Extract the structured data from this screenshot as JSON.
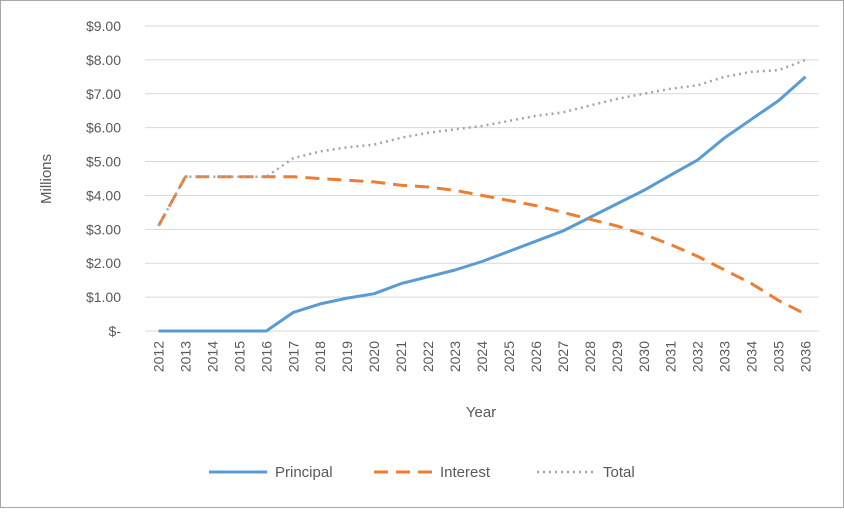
{
  "chart_data": {
    "type": "line",
    "title": "",
    "xlabel": "Year",
    "ylabel": "Millions",
    "ylim": [
      0,
      9
    ],
    "yticks": [
      0,
      1,
      2,
      3,
      4,
      5,
      6,
      7,
      8,
      9
    ],
    "ytick_labels": [
      "$-",
      "$1.00",
      "$2.00",
      "$3.00",
      "$4.00",
      "$5.00",
      "$6.00",
      "$7.00",
      "$8.00",
      "$9.00"
    ],
    "grid": true,
    "legend": "bottom",
    "categories": [
      "2012",
      "2013",
      "2014",
      "2015",
      "2016",
      "2017",
      "2018",
      "2019",
      "2020",
      "2021",
      "2022",
      "2023",
      "2024",
      "2025",
      "2026",
      "2027",
      "2028",
      "2029",
      "2030",
      "2031",
      "2032",
      "2033",
      "2034",
      "2035",
      "2036"
    ],
    "series": [
      {
        "name": "Principal",
        "color": "#5b9bd5",
        "style": "solid",
        "values": [
          0,
          0,
          0,
          0,
          0,
          0.55,
          0.8,
          0.97,
          1.1,
          1.4,
          1.6,
          1.8,
          2.05,
          2.35,
          2.65,
          2.95,
          3.35,
          3.75,
          4.15,
          4.6,
          5.05,
          5.7,
          6.25,
          6.8,
          7.5
        ]
      },
      {
        "name": "Interest",
        "color": "#ed7d31",
        "style": "dashed",
        "values": [
          3.1,
          4.55,
          4.55,
          4.55,
          4.55,
          4.55,
          4.5,
          4.45,
          4.4,
          4.3,
          4.25,
          4.15,
          4.0,
          3.85,
          3.7,
          3.5,
          3.3,
          3.1,
          2.85,
          2.55,
          2.2,
          1.8,
          1.4,
          0.9,
          0.5
        ]
      },
      {
        "name": "Total",
        "color": "#a5a5a5",
        "style": "dotted",
        "values": [
          3.1,
          4.55,
          4.55,
          4.55,
          4.55,
          5.1,
          5.3,
          5.42,
          5.5,
          5.7,
          5.85,
          5.95,
          6.05,
          6.2,
          6.35,
          6.45,
          6.65,
          6.85,
          7.0,
          7.15,
          7.25,
          7.5,
          7.65,
          7.7,
          8.0
        ]
      }
    ]
  }
}
